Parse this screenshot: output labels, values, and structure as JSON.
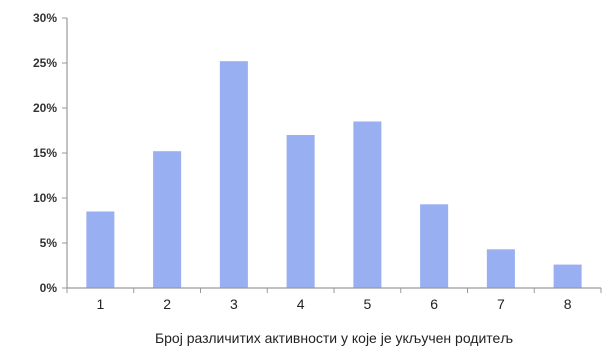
{
  "chart_data": {
    "type": "bar",
    "title": "",
    "xlabel": "Број различитих активности у које је укључен родитељ",
    "ylabel": "",
    "categories": [
      "1",
      "2",
      "3",
      "4",
      "5",
      "6",
      "7",
      "8"
    ],
    "values": [
      8.5,
      15.2,
      25.2,
      17.0,
      18.5,
      9.3,
      4.3,
      2.6
    ],
    "ylim": [
      0,
      30
    ],
    "yticks": [
      0,
      5,
      10,
      15,
      20,
      25,
      30
    ],
    "ytick_labels": [
      "0%",
      "5%",
      "10%",
      "15%",
      "20%",
      "25%",
      "30%"
    ],
    "value_unit": "%",
    "grid": false,
    "legend": "none",
    "colors": {
      "bar": "#98AFF2",
      "axis": "#9a9a9a",
      "text": "#222222"
    }
  }
}
